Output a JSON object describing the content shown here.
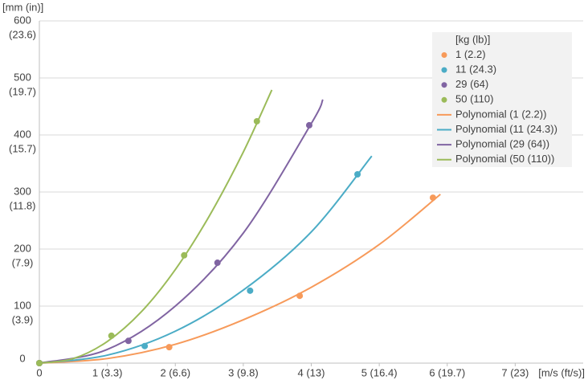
{
  "chart_data": {
    "type": "scatter",
    "y_axis_label": "[mm (in)]",
    "x_axis_label": "[m/s (ft/s)]",
    "legend_title": "[kg (lb)]",
    "legend": "top-right",
    "grid": true,
    "xlim": [
      0,
      8
    ],
    "ylim": [
      0,
      600
    ],
    "xticks": [
      0,
      {
        "value": 1,
        "label": "1 (3.3)"
      },
      {
        "value": 2,
        "label": "2 (6.6)"
      },
      {
        "value": 3,
        "label": "3 (9.8)"
      },
      {
        "value": 4,
        "label": "4 (13)"
      },
      {
        "value": 5,
        "label": "5 (16.4)"
      },
      {
        "value": 6,
        "label": "6 (19.7)"
      },
      {
        "value": 7,
        "label": "7 (23)"
      }
    ],
    "yticks": [
      0,
      {
        "value": 100,
        "label": [
          "100",
          "(3.9)"
        ]
      },
      {
        "value": 200,
        "label": [
          "200",
          "(7.9)"
        ]
      },
      {
        "value": 300,
        "label": [
          "300",
          "(11.8)"
        ]
      },
      {
        "value": 400,
        "label": [
          "400",
          "(15.7)"
        ]
      },
      {
        "value": 500,
        "label": [
          "500",
          "(19.7)"
        ]
      },
      {
        "value": 600,
        "label": [
          "600",
          "(23.6)"
        ]
      }
    ],
    "series": [
      {
        "name": "1 (2.2)",
        "color": "#f79a5a",
        "type": "scatter",
        "x": [
          0,
          1.91,
          3.83,
          5.79
        ],
        "values": [
          0,
          28,
          118,
          290
        ]
      },
      {
        "name": "11 (24.3)",
        "color": "#4bacc6",
        "type": "scatter",
        "x": [
          0,
          1.55,
          3.1,
          4.68
        ],
        "values": [
          0,
          30,
          127,
          331
        ]
      },
      {
        "name": "29 (64)",
        "color": "#8064a2",
        "type": "scatter",
        "x": [
          0,
          1.31,
          2.62,
          3.97
        ],
        "values": [
          0,
          39,
          176,
          417
        ]
      },
      {
        "name": "50 (110)",
        "color": "#9bbb59",
        "type": "scatter",
        "x": [
          0,
          1.06,
          2.13,
          3.2
        ],
        "values": [
          0,
          48,
          189,
          424
        ]
      },
      {
        "name": "Polynomial (1 (2.2))",
        "color": "#f79a5a",
        "type": "line",
        "x": [
          0,
          1,
          2,
          3,
          4,
          5,
          5.9
        ],
        "values": [
          0,
          8,
          33,
          76,
          133,
          208,
          296
        ]
      },
      {
        "name": "Polynomial (11 (24.3))",
        "color": "#4bacc6",
        "type": "line",
        "x": [
          0,
          1,
          2,
          3,
          4,
          4.89
        ],
        "values": [
          0,
          14,
          56,
          128,
          230,
          363
        ]
      },
      {
        "name": "Polynomial (29 (64))",
        "color": "#8064a2",
        "type": "line",
        "x": [
          0,
          1,
          2,
          3,
          4,
          4.17
        ],
        "values": [
          0,
          24,
          100,
          228,
          420,
          462
        ]
      },
      {
        "name": "Polynomial (50 (110))",
        "color": "#9bbb59",
        "type": "line",
        "x": [
          0,
          0.5,
          1,
          1.5,
          2,
          2.5,
          3,
          3.42
        ],
        "values": [
          0,
          8,
          38,
          90,
          164,
          258,
          370,
          479
        ]
      }
    ]
  }
}
